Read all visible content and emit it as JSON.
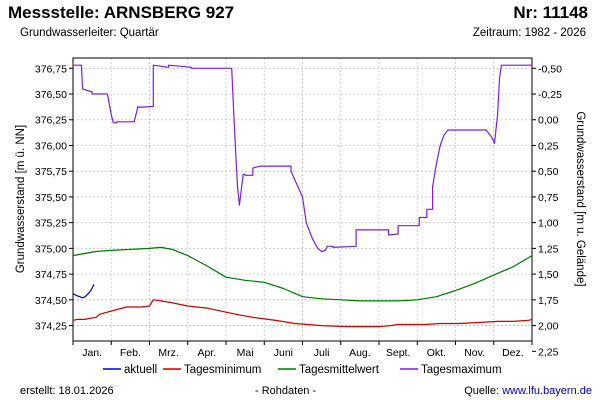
{
  "header": {
    "title": "Messstelle: ARNSBERG 927",
    "number": "Nr: 11148",
    "aquifer": "Grundwasserleiter: Quartär",
    "period": "Zeitraum: 1982 - 2026"
  },
  "footer": {
    "created": "erstellt:  18.01.2026",
    "note": "- Rohdaten -",
    "source_label": "Quelle: ",
    "source_url": "www.lfu.bayern.de"
  },
  "chart_data": {
    "type": "line",
    "title": "Messstelle: ARNSBERG 927",
    "xlabel": "",
    "ylabel": "Grundwasserstand [m ü. NN]",
    "ylabel_right": "Grundwasserstand [m u. Gelände]",
    "x_unit": "month",
    "xlim": [
      0,
      12
    ],
    "ylim": [
      374.1,
      376.85
    ],
    "grid": true,
    "legend_position": "bottom",
    "months": [
      "Jan.",
      "Feb.",
      "Mrz.",
      "Apr.",
      "Mai",
      "Juni",
      "Juli",
      "Aug.",
      "Sept.",
      "Okt.",
      "Nov.",
      "Dez."
    ],
    "y_ticks": [
      "374,25",
      "374,50",
      "374,75",
      "375,00",
      "375,25",
      "375,50",
      "375,75",
      "376,00",
      "376,25",
      "376,50",
      "376,75"
    ],
    "y_tick_values": [
      374.25,
      374.5,
      374.75,
      375.0,
      375.25,
      375.5,
      375.75,
      376.0,
      376.25,
      376.5,
      376.75
    ],
    "y2_ticks": [
      "-0,50",
      "-0,25",
      "0,00",
      "0,25",
      "0,50",
      "0,75",
      "1,00",
      "1,25",
      "1,50",
      "1,75",
      "2,00",
      "2,25"
    ],
    "y2_tick_values": [
      -0.5,
      -0.25,
      0.0,
      0.25,
      0.5,
      0.75,
      1.0,
      1.25,
      1.5,
      1.75,
      2.0,
      2.25
    ],
    "ground_level": 376.25,
    "series": [
      {
        "name": "aktuell",
        "color": "#0000cc",
        "x": [
          0.0,
          0.1,
          0.18,
          0.25,
          0.32,
          0.4,
          0.48,
          0.55
        ],
        "y": [
          374.56,
          374.54,
          374.53,
          374.52,
          374.53,
          374.56,
          374.6,
          374.65
        ]
      },
      {
        "name": "Tagesminimum",
        "color": "#cc0000",
        "x": [
          0.0,
          0.1,
          0.3,
          0.6,
          0.7,
          1.4,
          1.8,
          2.0,
          2.1,
          2.3,
          2.6,
          3.0,
          3.5,
          4.0,
          4.4,
          4.7,
          5.3,
          5.8,
          6.5,
          7.2,
          8.0,
          8.3,
          8.5,
          9.2,
          9.6,
          10.1,
          10.6,
          11.1,
          11.5,
          11.9,
          12.0
        ],
        "y": [
          374.3,
          374.31,
          374.31,
          374.33,
          374.36,
          374.43,
          374.43,
          374.44,
          374.5,
          374.49,
          374.47,
          374.44,
          374.42,
          374.38,
          374.35,
          374.33,
          374.3,
          374.27,
          374.25,
          374.24,
          374.24,
          374.25,
          374.26,
          374.26,
          374.27,
          374.27,
          374.28,
          374.29,
          374.29,
          374.3,
          374.31
        ]
      },
      {
        "name": "Tagesmittelwert",
        "color": "#007700",
        "x": [
          0.0,
          0.3,
          0.6,
          1.0,
          1.5,
          2.0,
          2.3,
          2.6,
          3.0,
          3.5,
          4.0,
          4.5,
          5.0,
          5.5,
          6.0,
          6.5,
          7.0,
          7.5,
          8.0,
          8.5,
          9.0,
          9.5,
          10.0,
          10.5,
          11.0,
          11.5,
          12.0
        ],
        "y": [
          374.93,
          374.95,
          374.97,
          374.98,
          374.99,
          375.0,
          375.01,
          374.99,
          374.93,
          374.83,
          374.72,
          374.69,
          374.67,
          374.61,
          374.53,
          374.51,
          374.5,
          374.49,
          374.49,
          374.49,
          374.5,
          374.53,
          374.59,
          374.66,
          374.74,
          374.82,
          374.93
        ]
      },
      {
        "name": "Tagesmaximum",
        "color": "#7722dd",
        "x": [
          0.0,
          0.22,
          0.25,
          0.5,
          0.5,
          0.9,
          1.0,
          1.05,
          1.15,
          1.15,
          1.6,
          1.7,
          1.7,
          2.1,
          2.1,
          2.5,
          2.5,
          3.1,
          3.1,
          4.15,
          4.2,
          4.25,
          4.3,
          4.35,
          4.45,
          4.5,
          4.5,
          4.7,
          4.7,
          4.9,
          4.9,
          5.7,
          5.7,
          6.0,
          6.1,
          6.25,
          6.4,
          6.5,
          6.6,
          6.65,
          6.8,
          6.8,
          7.4,
          7.4,
          8.0,
          8.25,
          8.25,
          8.5,
          8.5,
          9.05,
          9.05,
          9.25,
          9.25,
          9.4,
          9.4,
          9.5,
          9.6,
          9.7,
          9.8,
          9.9,
          10.0,
          10.05,
          10.1,
          10.15,
          10.8,
          10.95,
          11.02,
          11.1,
          11.15,
          11.2,
          11.2,
          12.0
        ],
        "y": [
          376.78,
          376.78,
          376.55,
          376.52,
          376.5,
          376.5,
          376.3,
          376.22,
          376.22,
          376.23,
          376.23,
          376.38,
          376.37,
          376.38,
          376.78,
          376.76,
          376.78,
          376.76,
          376.75,
          376.75,
          376.32,
          375.95,
          375.6,
          375.42,
          375.72,
          375.72,
          375.71,
          375.71,
          375.78,
          375.8,
          375.8,
          375.8,
          375.75,
          375.5,
          375.25,
          375.1,
          375.0,
          374.97,
          374.98,
          375.02,
          375.02,
          375.01,
          375.02,
          375.18,
          375.18,
          375.18,
          375.13,
          375.14,
          375.22,
          375.22,
          375.3,
          375.3,
          375.38,
          375.38,
          375.6,
          375.82,
          376.0,
          376.1,
          376.15,
          376.15,
          376.15,
          376.15,
          376.15,
          376.15,
          376.15,
          376.08,
          376.02,
          376.3,
          376.65,
          376.78,
          376.78,
          376.78
        ]
      }
    ]
  }
}
